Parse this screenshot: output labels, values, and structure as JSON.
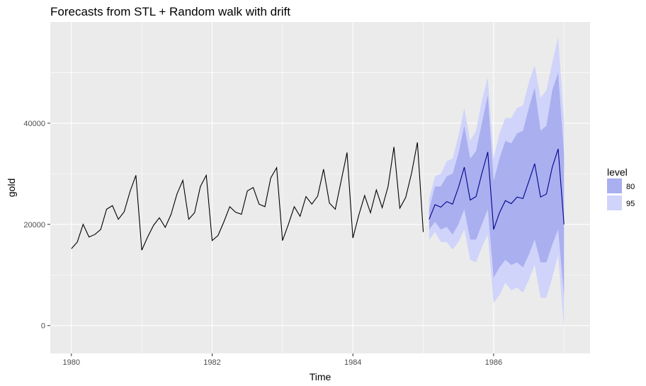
{
  "chart_data": {
    "type": "line",
    "title": "Forecasts from STL +  Random walk with drift",
    "xlabel": "Time",
    "ylabel": "gold",
    "xlim": [
      1979.7,
      1987.37
    ],
    "ylim": [
      -5500,
      60000
    ],
    "x_ticks": [
      1980,
      1982,
      1984,
      1986
    ],
    "y_ticks": [
      0,
      20000,
      40000
    ],
    "x_tick_labels": [
      "1980",
      "1982",
      "1984",
      "1986"
    ],
    "y_tick_labels": [
      "0",
      "20000",
      "40000"
    ],
    "grid": true,
    "legend_position": "right",
    "legend_title": "level",
    "legend": [
      {
        "label": "80",
        "color": "#a9afef"
      },
      {
        "label": "95",
        "color": "#d0d3fa"
      }
    ],
    "colors": {
      "panel_background": "#ebebeb",
      "grid_major": "#ffffff",
      "history_line": "#000000",
      "forecast_line": "#00008b",
      "interval_80": "#a9afef",
      "interval_95": "#d0d3fa"
    },
    "series": [
      {
        "role": "history",
        "x_start": 1980,
        "step": 0.0833333333,
        "values": [
          15200,
          16500,
          20000,
          17500,
          18000,
          19000,
          23000,
          23700,
          21000,
          22500,
          26500,
          29700,
          14900,
          17500,
          19800,
          21300,
          19400,
          22000,
          26000,
          28700,
          21000,
          22300,
          27500,
          29700,
          16800,
          17800,
          20500,
          23500,
          22400,
          22000,
          26600,
          27300,
          24000,
          23500,
          29200,
          31200,
          16800,
          20000,
          23500,
          21600,
          25500,
          24000,
          25600,
          30900,
          24200,
          23000,
          28600,
          34200,
          17300,
          21800,
          25700,
          22300,
          26800,
          23300,
          27500,
          35300,
          23200,
          25300,
          30100,
          36200,
          18500
        ]
      },
      {
        "role": "forecast",
        "x": [
          1985.0833,
          1985.1667,
          1985.25,
          1985.3333,
          1985.4167,
          1985.5,
          1985.5833,
          1985.6667,
          1985.75,
          1985.8333,
          1985.9167,
          1986.0,
          1986.0833,
          1986.1667,
          1986.25,
          1986.3333,
          1986.4167,
          1986.5,
          1986.5833,
          1986.6667,
          1986.75,
          1986.8333,
          1986.9167,
          1987.0
        ],
        "point": [
          21000,
          23900,
          23400,
          24500,
          24000,
          27300,
          31300,
          24800,
          25500,
          30100,
          34300,
          19000,
          22300,
          24700,
          24100,
          25400,
          25100,
          28500,
          32000,
          25400,
          26000,
          31300,
          34900,
          20000
        ],
        "lo80": [
          19000,
          20500,
          19000,
          19500,
          18000,
          20000,
          23000,
          17000,
          17000,
          20000,
          23000,
          9500,
          11500,
          13000,
          12000,
          12500,
          11500,
          14000,
          17000,
          12500,
          12500,
          16000,
          19000,
          6000
        ],
        "hi80": [
          23000,
          27500,
          27500,
          29500,
          30000,
          34000,
          39500,
          33000,
          34500,
          40000,
          45500,
          28500,
          33000,
          36500,
          36000,
          38000,
          38500,
          43000,
          47000,
          38500,
          39500,
          46500,
          50000,
          34000
        ],
        "lo95": [
          17000,
          18500,
          16500,
          16500,
          15000,
          16500,
          19000,
          13000,
          12500,
          15500,
          18000,
          4500,
          6000,
          8500,
          7000,
          7500,
          6500,
          9000,
          12000,
          5500,
          5500,
          9500,
          14000,
          -500
        ],
        "hi95": [
          25000,
          29500,
          30000,
          32500,
          33000,
          37500,
          43000,
          36500,
          38500,
          44500,
          49000,
          33000,
          38000,
          41000,
          41000,
          43000,
          43500,
          48000,
          51500,
          45000,
          46500,
          52000,
          57000,
          40500
        ]
      }
    ]
  }
}
